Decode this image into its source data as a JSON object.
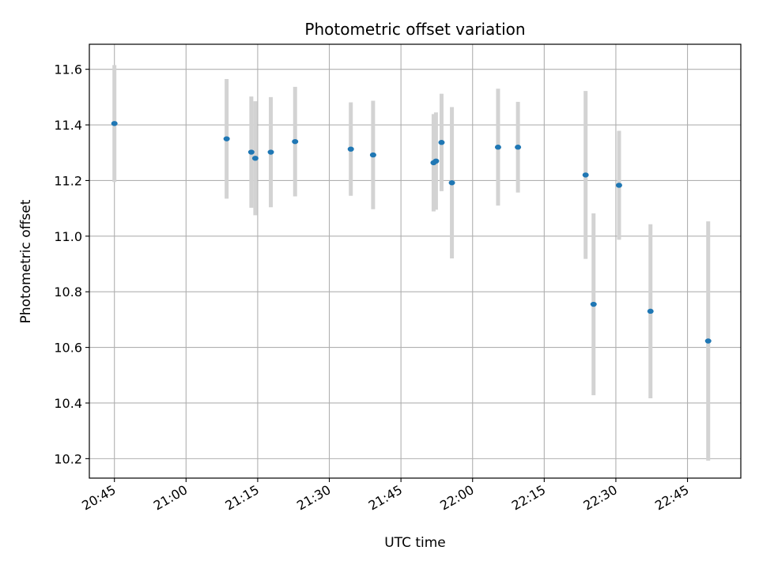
{
  "chart_data": {
    "type": "scatter",
    "title": "Photometric offset variation",
    "xlabel": "UTC time",
    "ylabel": "Photometric offset",
    "x_tick_labels": [
      "20:45",
      "21:00",
      "21:15",
      "21:30",
      "21:45",
      "22:00",
      "22:15",
      "22:30",
      "22:45"
    ],
    "y_tick_labels": [
      "10.2",
      "10.4",
      "10.6",
      "10.8",
      "11.0",
      "11.2",
      "11.4",
      "11.6"
    ],
    "x_ticks": [
      "20:45",
      "21:00",
      "21:15",
      "21:30",
      "21:45",
      "22:00",
      "22:15",
      "22:30",
      "22:45"
    ],
    "y_ticks": [
      10.2,
      10.4,
      10.6,
      10.8,
      11.0,
      11.2,
      11.4,
      11.6
    ],
    "xlim": [
      "20:39:45",
      "22:56:10"
    ],
    "ylim": [
      10.13,
      11.69
    ],
    "grid": true,
    "series": [
      {
        "marker_color": "#1f77b4",
        "errorbar_color": "#d3d3d3",
        "points": [
          {
            "x": "20:45:00",
            "y": 11.405,
            "err": 0.21
          },
          {
            "x": "21:08:30",
            "y": 11.35,
            "err": 0.215
          },
          {
            "x": "21:13:40",
            "y": 11.302,
            "err": 0.2
          },
          {
            "x": "21:14:30",
            "y": 11.28,
            "err": 0.205
          },
          {
            "x": "21:17:45",
            "y": 11.302,
            "err": 0.198
          },
          {
            "x": "21:22:50",
            "y": 11.34,
            "err": 0.197
          },
          {
            "x": "21:34:30",
            "y": 11.313,
            "err": 0.168
          },
          {
            "x": "21:39:10",
            "y": 11.292,
            "err": 0.195
          },
          {
            "x": "21:51:50",
            "y": 11.264,
            "err": 0.175
          },
          {
            "x": "21:52:20",
            "y": 11.27,
            "err": 0.175
          },
          {
            "x": "21:53:30",
            "y": 11.337,
            "err": 0.175
          },
          {
            "x": "21:55:40",
            "y": 11.192,
            "err": 0.272
          },
          {
            "x": "22:05:20",
            "y": 11.32,
            "err": 0.21
          },
          {
            "x": "22:09:30",
            "y": 11.32,
            "err": 0.163
          },
          {
            "x": "22:23:40",
            "y": 11.22,
            "err": 0.302
          },
          {
            "x": "22:25:20",
            "y": 10.755,
            "err": 0.327
          },
          {
            "x": "22:30:40",
            "y": 11.183,
            "err": 0.196
          },
          {
            "x": "22:37:15",
            "y": 10.73,
            "err": 0.313
          },
          {
            "x": "22:49:20",
            "y": 10.623,
            "err": 0.43
          }
        ]
      }
    ]
  },
  "colors": {
    "marker": "#1f77b4",
    "errorbar": "#d3d3d3",
    "grid": "#b0b0b0",
    "axes": "#000000"
  }
}
